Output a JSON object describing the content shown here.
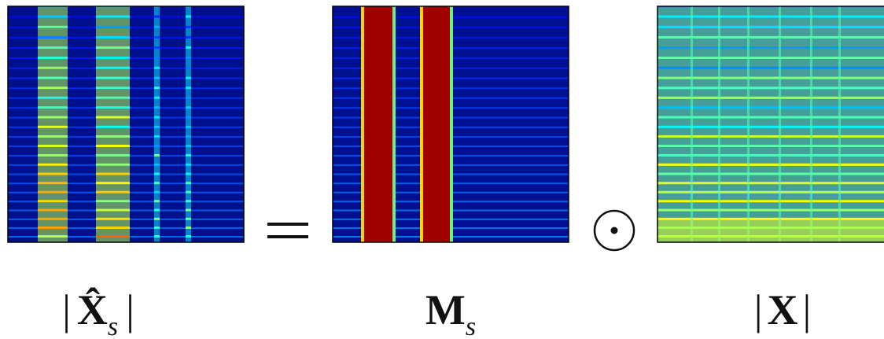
{
  "equation": {
    "panels": [
      {
        "label": {
          "left": "|",
          "symbol": "X̂",
          "subscript": "s",
          "right": "|"
        }
      },
      {
        "label": {
          "symbol": "M",
          "subscript": "s"
        }
      },
      {
        "label": {
          "left": "|",
          "symbol": "X",
          "right": "|"
        }
      }
    ]
  }
}
